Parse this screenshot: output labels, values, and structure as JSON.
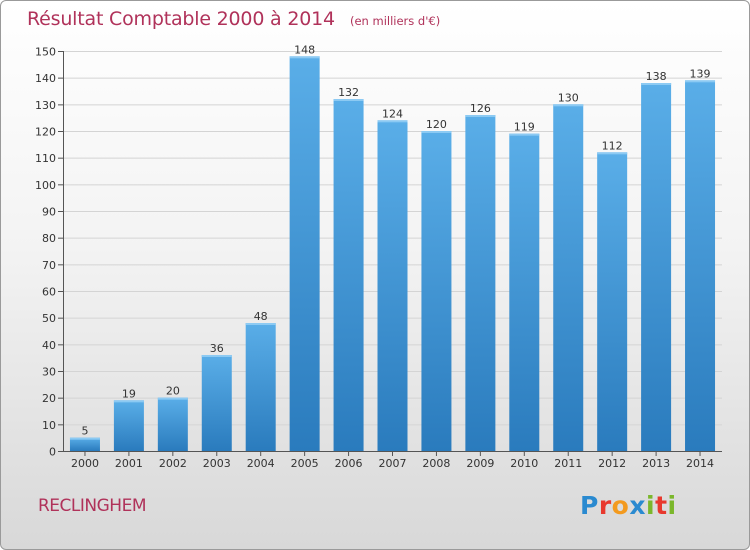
{
  "header": {
    "title": "Résultat Comptable 2000 à 2014",
    "unit": "(en milliers d'€)"
  },
  "footer": {
    "commune": "RECLINGHEM",
    "logo": {
      "letters": [
        "P",
        "r",
        "o",
        "x",
        "i",
        "t",
        "i"
      ],
      "colors": [
        "#2a8ad0",
        "#e8392e",
        "#f39a1e",
        "#2a8ad0",
        "#7bb72b",
        "#e8392e",
        "#7bb72b"
      ]
    }
  },
  "colors": {
    "title": "#b0325a",
    "bar_light": "#5aaee8",
    "bar_dark": "#2a7bbd",
    "grid": "#d4d4d4"
  },
  "chart_data": {
    "type": "bar",
    "title": "Résultat Comptable 2000 à 2014",
    "xlabel": "",
    "ylabel": "",
    "categories": [
      "2000",
      "2001",
      "2002",
      "2003",
      "2004",
      "2005",
      "2006",
      "2007",
      "2008",
      "2009",
      "2010",
      "2011",
      "2012",
      "2013",
      "2014"
    ],
    "values": [
      5,
      19,
      20,
      36,
      48,
      148,
      132,
      124,
      120,
      126,
      119,
      130,
      112,
      138,
      139
    ],
    "ylim": [
      0,
      150
    ],
    "yticks": [
      0,
      10,
      20,
      30,
      40,
      50,
      60,
      70,
      80,
      90,
      100,
      110,
      120,
      130,
      140,
      150
    ],
    "grid": true,
    "data_labels": true
  }
}
